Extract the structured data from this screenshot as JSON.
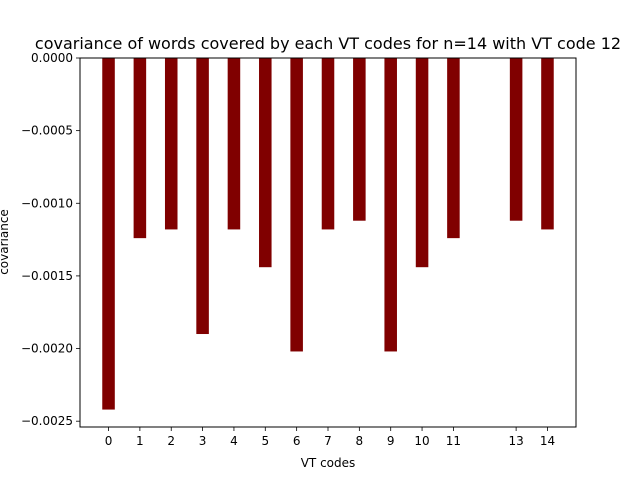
{
  "chart_data": {
    "type": "bar",
    "title": "covariance of words covered by each VT codes for n=14 with VT code 12",
    "xlabel": "VT codes",
    "ylabel": "covariance",
    "categories": [
      "0",
      "1",
      "2",
      "3",
      "4",
      "5",
      "6",
      "7",
      "8",
      "9",
      "10",
      "11",
      "13",
      "14"
    ],
    "x": [
      0,
      1,
      2,
      3,
      4,
      5,
      6,
      7,
      8,
      9,
      10,
      11,
      13,
      14
    ],
    "values": [
      -0.00242,
      -0.00124,
      -0.00118,
      -0.0019,
      -0.00118,
      -0.00144,
      -0.00202,
      -0.00118,
      -0.00112,
      -0.00202,
      -0.00144,
      -0.00124,
      -0.00112,
      -0.00118
    ],
    "xlim": [
      -0.91,
      14.91
    ],
    "ylim": [
      -0.00254,
      0.0
    ],
    "yticks": [
      -0.0025,
      -0.002,
      -0.0015,
      -0.001,
      -0.0005,
      0.0
    ],
    "ytick_labels": [
      "−0.0025",
      "−0.0020",
      "−0.0015",
      "−0.0010",
      "−0.0005",
      "0.0000"
    ],
    "bar_width": 0.4,
    "bar_color": "#800000",
    "grid": false,
    "legend": "none"
  }
}
